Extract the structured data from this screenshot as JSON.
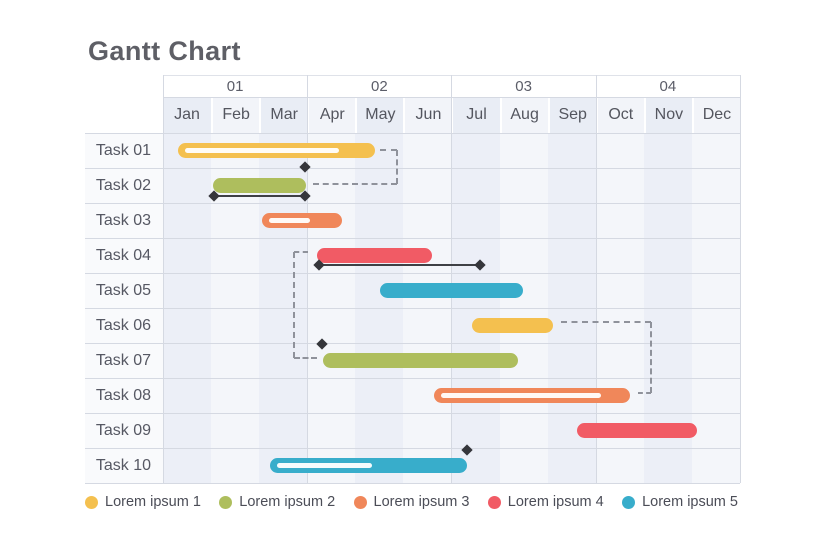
{
  "title": "Gantt Chart",
  "header": {
    "quarters": [
      "01",
      "02",
      "03",
      "04"
    ],
    "months": [
      "Jan",
      "Feb",
      "Mar",
      "Apr",
      "May",
      "Jun",
      "Jul",
      "Aug",
      "Sep",
      "Oct",
      "Nov",
      "Dec"
    ]
  },
  "tasks": [
    "Task 01",
    "Task 02",
    "Task 03",
    "Task 04",
    "Task 05",
    "Task 06",
    "Task 07",
    "Task 08",
    "Task 09",
    "Task 10"
  ],
  "legend": [
    {
      "label": "Lorem ipsum 1",
      "color_key": "yellow"
    },
    {
      "label": "Lorem ipsum 2",
      "color_key": "green"
    },
    {
      "label": "Lorem ipsum 3",
      "color_key": "orange"
    },
    {
      "label": "Lorem ipsum 4",
      "color_key": "red"
    },
    {
      "label": "Lorem ipsum 5",
      "color_key": "blue"
    }
  ],
  "colors": {
    "yellow": "#F4C04F",
    "green": "#AEBE5D",
    "orange": "#F0875A",
    "red": "#F15B65",
    "blue": "#38ADCB",
    "grid": "#d5d9e2",
    "grid_light": "#dfe2e9",
    "solid_line": "#3e4045",
    "diamond": "#35363b",
    "dashed": "#8f929b",
    "col_shade": "#eceff7",
    "col_base": "#f4f6fa",
    "header_cell_shade": "#e9edf5",
    "header_cell_base": "#f2f4f9",
    "label_cell": "#f9fafc"
  },
  "chart_data": {
    "type": "gantt",
    "title": "Gantt Chart",
    "x_axis": {
      "unit": "months",
      "note": "x = 1.0 is start of Jan, 13.0 is end of Dec",
      "quarters": [
        "01",
        "02",
        "03",
        "04"
      ],
      "months": [
        "Jan",
        "Feb",
        "Mar",
        "Apr",
        "May",
        "Jun",
        "Jul",
        "Aug",
        "Sep",
        "Oct",
        "Nov",
        "Dec"
      ]
    },
    "bars": [
      {
        "task": "Task 01",
        "row": 0,
        "color": "yellow",
        "start": 1.31,
        "end": 5.41,
        "progress_stripe": 0.84
      },
      {
        "task": "Task 02",
        "row": 1,
        "color": "green",
        "start": 2.04,
        "end": 3.97,
        "progress_stripe": null
      },
      {
        "task": "Task 03",
        "row": 2,
        "color": "orange",
        "start": 3.06,
        "end": 4.72,
        "progress_stripe": 0.62
      },
      {
        "task": "Task 04",
        "row": 3,
        "color": "red",
        "start": 4.2,
        "end": 6.59,
        "progress_stripe": null
      },
      {
        "task": "Task 05",
        "row": 4,
        "color": "blue",
        "start": 5.51,
        "end": 8.49,
        "progress_stripe": null
      },
      {
        "task": "Task 06",
        "row": 5,
        "color": "yellow",
        "start": 7.43,
        "end": 9.11,
        "progress_stripe": null
      },
      {
        "task": "Task 07",
        "row": 6,
        "color": "green",
        "start": 4.33,
        "end": 8.38,
        "progress_stripe": null
      },
      {
        "task": "Task 08",
        "row": 7,
        "color": "orange",
        "start": 6.64,
        "end": 10.71,
        "progress_stripe": 0.88
      },
      {
        "task": "Task 09",
        "row": 8,
        "color": "red",
        "start": 9.61,
        "end": 12.11,
        "progress_stripe": null
      },
      {
        "task": "Task 10",
        "row": 9,
        "color": "blue",
        "start": 3.23,
        "end": 7.32,
        "progress_stripe": 0.52
      }
    ],
    "baseline_ranges": [
      {
        "task": "Task 02",
        "y_row": 1.8,
        "from": 2.06,
        "to": 3.95
      },
      {
        "task": "Task 04",
        "y_row": 3.77,
        "from": 4.24,
        "to": 7.59
      }
    ],
    "milestone_diamonds": [
      {
        "x": 3.95,
        "y_row": 0.97
      },
      {
        "x": 2.06,
        "y_row": 1.8
      },
      {
        "x": 3.95,
        "y_row": 1.8
      },
      {
        "x": 4.24,
        "y_row": 3.77
      },
      {
        "x": 7.59,
        "y_row": 3.77
      },
      {
        "x": 4.31,
        "y_row": 6.03
      },
      {
        "x": 7.32,
        "y_row": 9.06
      }
    ],
    "dashed_connectors": [
      {
        "from_task": "Task 01",
        "to_task": "Task 02",
        "points": [
          [
            5.51,
            0.49
          ],
          [
            5.87,
            0.49
          ],
          [
            5.87,
            1.46
          ],
          [
            4.12,
            1.46
          ]
        ]
      },
      {
        "from_task": "Task 04",
        "to_task": "Task 07",
        "points": [
          [
            4.02,
            3.4
          ],
          [
            3.72,
            3.4
          ],
          [
            3.72,
            6.43
          ],
          [
            4.2,
            6.43
          ]
        ]
      },
      {
        "from_task": "Task 06",
        "to_task": "Task 08",
        "points": [
          [
            9.28,
            5.4
          ],
          [
            11.15,
            5.4
          ],
          [
            11.15,
            7.43
          ],
          [
            10.88,
            7.43
          ]
        ]
      }
    ]
  }
}
